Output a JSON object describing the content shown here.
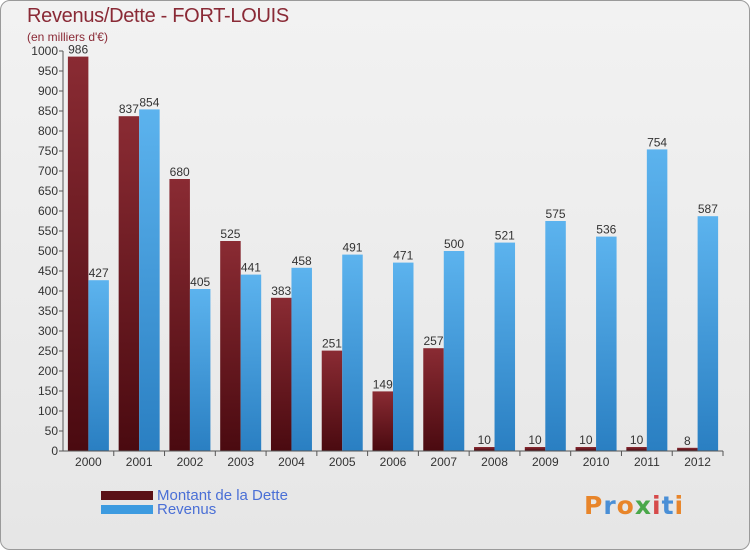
{
  "header": {
    "title": "Revenus/Dette - FORT-LOUIS",
    "subtitle": "(en milliers d'€)"
  },
  "legend": {
    "debt_label": "Montant de la Dette",
    "revenue_label": "Revenus"
  },
  "logo": {
    "text": "Proxiti",
    "colors": [
      "#e8852a",
      "#4a8fd6",
      "#e8852a",
      "#4aa84a",
      "#d64a4a",
      "#4a8fd6",
      "#e8852a"
    ]
  },
  "colors": {
    "debt": "#6e1c22",
    "revenue": "#3d9be0",
    "title": "#8a2a36",
    "legend_text": "#4a6fd6"
  },
  "chart_data": {
    "type": "bar",
    "title": "Revenus/Dette - FORT-LOUIS",
    "subtitle": "(en milliers d'€)",
    "xlabel": "",
    "ylabel": "",
    "ylim": [
      0,
      1000
    ],
    "ytick_step": 50,
    "grid": false,
    "legend_position": "bottom-left",
    "categories": [
      "2000",
      "2001",
      "2002",
      "2003",
      "2004",
      "2005",
      "2006",
      "2007",
      "2008",
      "2009",
      "2010",
      "2011",
      "2012"
    ],
    "series": [
      {
        "name": "Montant de la Dette",
        "values": [
          986,
          837,
          680,
          525,
          383,
          251,
          149,
          257,
          10,
          10,
          10,
          10,
          8
        ]
      },
      {
        "name": "Revenus",
        "values": [
          427,
          854,
          405,
          441,
          458,
          491,
          471,
          500,
          521,
          575,
          536,
          754,
          587
        ]
      }
    ]
  }
}
